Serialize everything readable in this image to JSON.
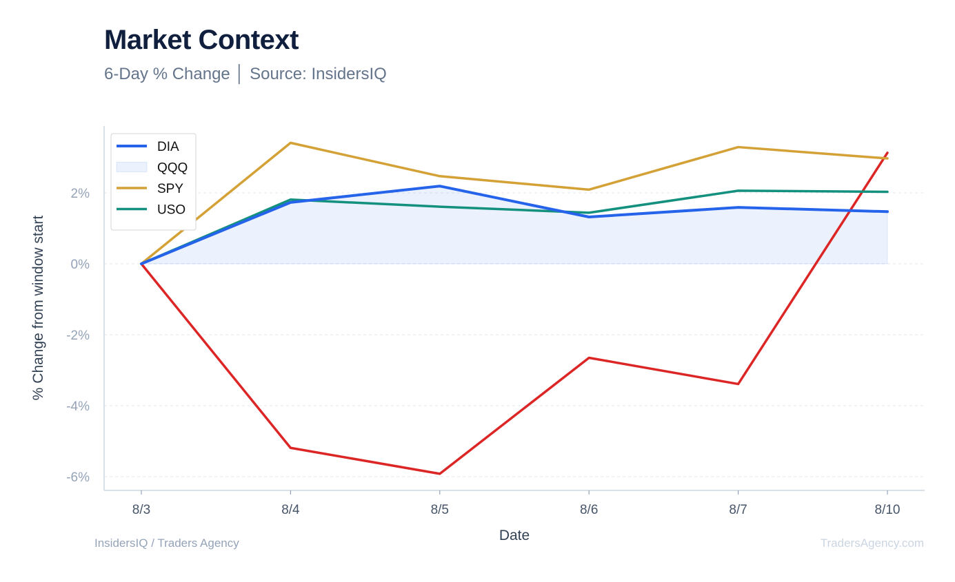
{
  "header": {
    "title": "Market Context",
    "subtitle": "6-Day % Change │ Source: InsidersIQ"
  },
  "footer": {
    "left": "InsidersIQ / Traders Agency",
    "right": "TradersAgency.com"
  },
  "chart_data": {
    "type": "line",
    "xlabel": "Date",
    "ylabel": "% Change from window start",
    "categories": [
      "8/3",
      "8/4",
      "8/5",
      "8/6",
      "8/7",
      "8/10"
    ],
    "yticks": [
      2,
      0,
      -2,
      -4,
      -6
    ],
    "ytick_labels": [
      "2%",
      "0%",
      "-2%",
      "-4%",
      "-6%"
    ],
    "ylim": [
      -6.4,
      3.9
    ],
    "grid": true,
    "legend_position": "top-left",
    "series": [
      {
        "name": "DIA",
        "style": "line",
        "color": "#2563eb",
        "values": [
          0,
          1.73,
          2.19,
          1.32,
          1.59,
          1.47
        ]
      },
      {
        "name": "QQQ",
        "style": "area",
        "color": "#2563eb",
        "values": [
          0,
          1.73,
          2.19,
          1.32,
          1.59,
          1.47
        ]
      },
      {
        "name": "SPY",
        "style": "line",
        "color": "#d4a136",
        "values": [
          0,
          3.41,
          2.47,
          2.09,
          3.29,
          2.97
        ]
      },
      {
        "name": "USO",
        "style": "line",
        "color": "#14907e",
        "values": [
          0,
          1.81,
          1.61,
          1.44,
          2.06,
          2.03
        ]
      },
      {
        "name": "",
        "style": "line",
        "color": "#dc2626",
        "values": [
          0,
          -5.19,
          -5.92,
          -2.65,
          -3.39,
          3.13
        ]
      }
    ]
  }
}
